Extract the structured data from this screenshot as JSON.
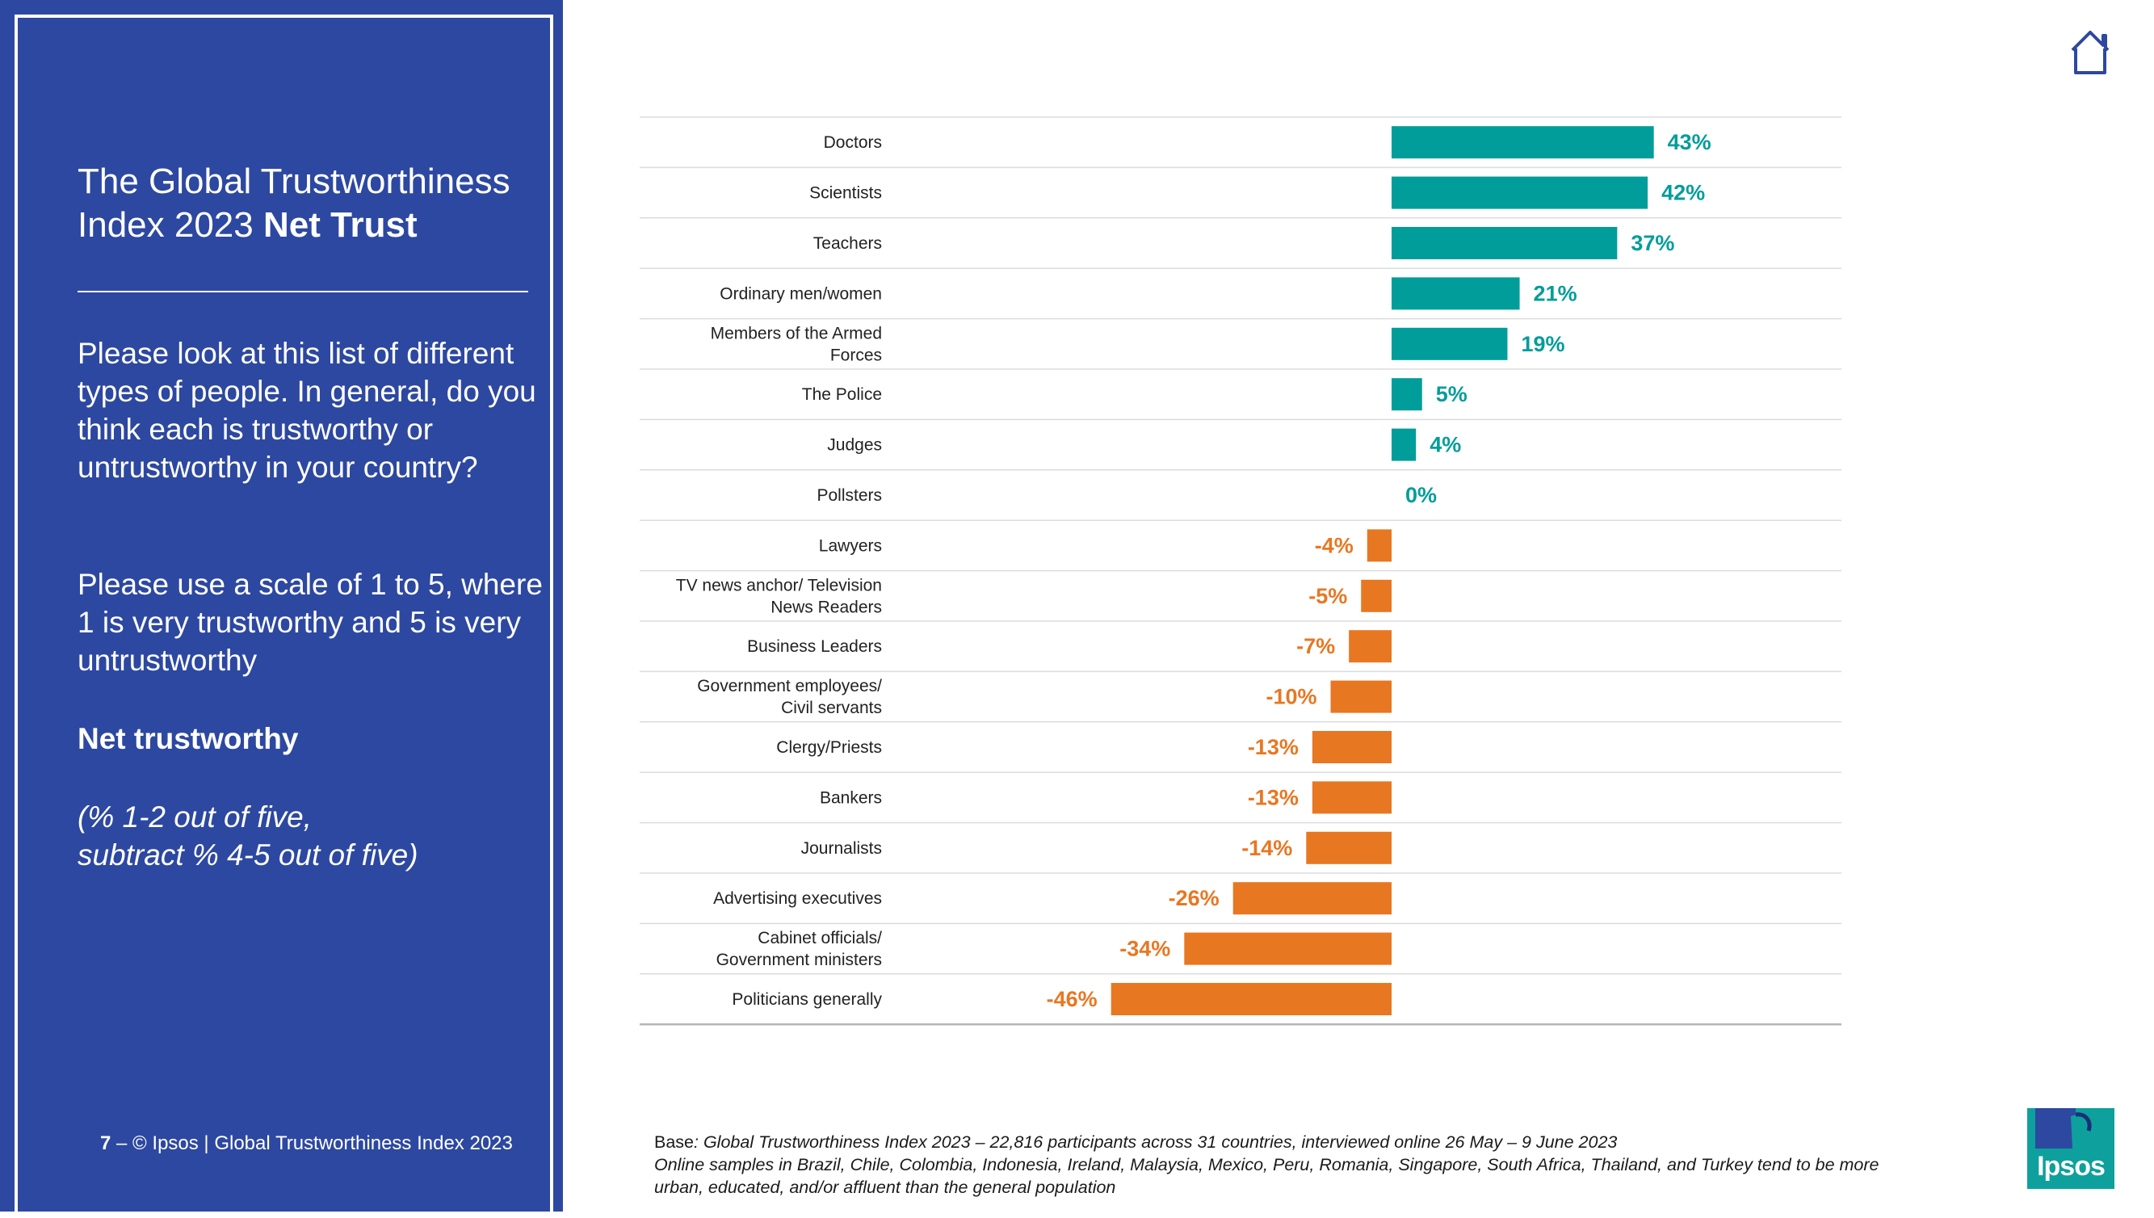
{
  "title": {
    "regular": "The Global Trustworthiness Index 2023",
    "bold": "Net Trust"
  },
  "question": {
    "line1": "Please look at this list of different types of people. In general, do you think each is trustworthy or untrustworthy in your country?",
    "line2": "Please use a scale of 1 to 5, where 1 is very trustworthy and 5 is very untrustworthy"
  },
  "net_label": "Net trustworthy",
  "note_line1": "(% 1-2 out of five,",
  "note_line2": "subtract % 4-5 out of five)",
  "footer": {
    "page_number": "7",
    "text": " – © Ipsos | Global Trustworthiness Index 2023"
  },
  "base": {
    "prefix": "Base",
    "line1": ": Global Trustworthiness Index 2023 – 22,816 participants across 31 countries, interviewed online 26 May – 9 June 2023",
    "line2": "Online samples in Brazil, Chile, Colombia, Indonesia, Ireland, Malaysia, Mexico, Peru, Romania, Singapore, South Africa, Thailand, and Turkey tend to be more urban, educated, and/or affluent than the general population"
  },
  "logo_text": "Ipsos",
  "icons": {
    "home": "home-icon",
    "logo": "ipsos-logo-icon"
  },
  "colors": {
    "sidebar": "#2d48a0",
    "positive": "#009d9a",
    "negative": "#e87722"
  },
  "chart_data": {
    "type": "bar",
    "orientation": "horizontal",
    "title": "",
    "unit": "%",
    "categories": [
      "Doctors",
      "Scientists",
      "Teachers",
      "Ordinary men/women",
      "Members of the Armed Forces",
      "The Police",
      "Judges",
      "Pollsters",
      "Lawyers",
      "TV news anchor/ Television News Readers",
      "Business Leaders",
      "Government employees/ Civil servants",
      "Clergy/Priests",
      "Bankers",
      "Journalists",
      "Advertising executives",
      "Cabinet officials/ Government ministers",
      "Politicians generally"
    ],
    "label_lines": [
      [
        "Doctors"
      ],
      [
        "Scientists"
      ],
      [
        "Teachers"
      ],
      [
        "Ordinary men/women"
      ],
      [
        "Members of the Armed",
        "Forces"
      ],
      [
        "The Police"
      ],
      [
        "Judges"
      ],
      [
        "Pollsters"
      ],
      [
        "Lawyers"
      ],
      [
        "TV news anchor/ Television",
        "News Readers"
      ],
      [
        "Business Leaders"
      ],
      [
        "Government employees/",
        "Civil servants"
      ],
      [
        "Clergy/Priests"
      ],
      [
        "Bankers"
      ],
      [
        "Journalists"
      ],
      [
        "Advertising executives"
      ],
      [
        "Cabinet officials/",
        "Government ministers"
      ],
      [
        "Politicians generally"
      ]
    ],
    "values": [
      43,
      42,
      37,
      21,
      19,
      5,
      4,
      0,
      -4,
      -5,
      -7,
      -10,
      -13,
      -13,
      -14,
      -26,
      -34,
      -46
    ],
    "value_labels": [
      "43%",
      "42%",
      "37%",
      "21%",
      "19%",
      "5%",
      "4%",
      "0%",
      "-4%",
      "-5%",
      "-7%",
      "-10%",
      "-13%",
      "-13%",
      "-14%",
      "-26%",
      "-34%",
      "-46%"
    ],
    "xlim": [
      -50,
      50
    ],
    "grid": false,
    "legend": "none"
  }
}
